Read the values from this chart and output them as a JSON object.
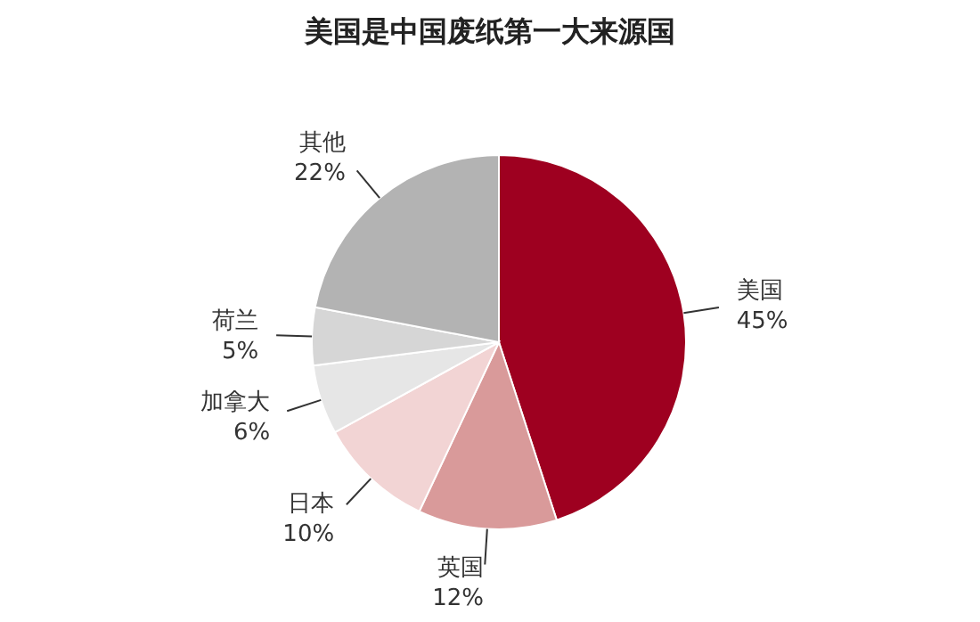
{
  "chart_data": {
    "type": "pie",
    "title": "美国是中国废纸第一大来源国",
    "categories": [
      "美国",
      "英国",
      "日本",
      "加拿大",
      "荷兰",
      "其他"
    ],
    "values": [
      45,
      12,
      10,
      6,
      5,
      22
    ],
    "value_labels": [
      "45%",
      "12%",
      "10%",
      "6%",
      "5%",
      "22%"
    ],
    "colors": [
      "#9e0020",
      "#d99a9a",
      "#f2d4d4",
      "#e6e6e6",
      "#d6d6d6",
      "#b3b3b3"
    ],
    "legend": false
  }
}
